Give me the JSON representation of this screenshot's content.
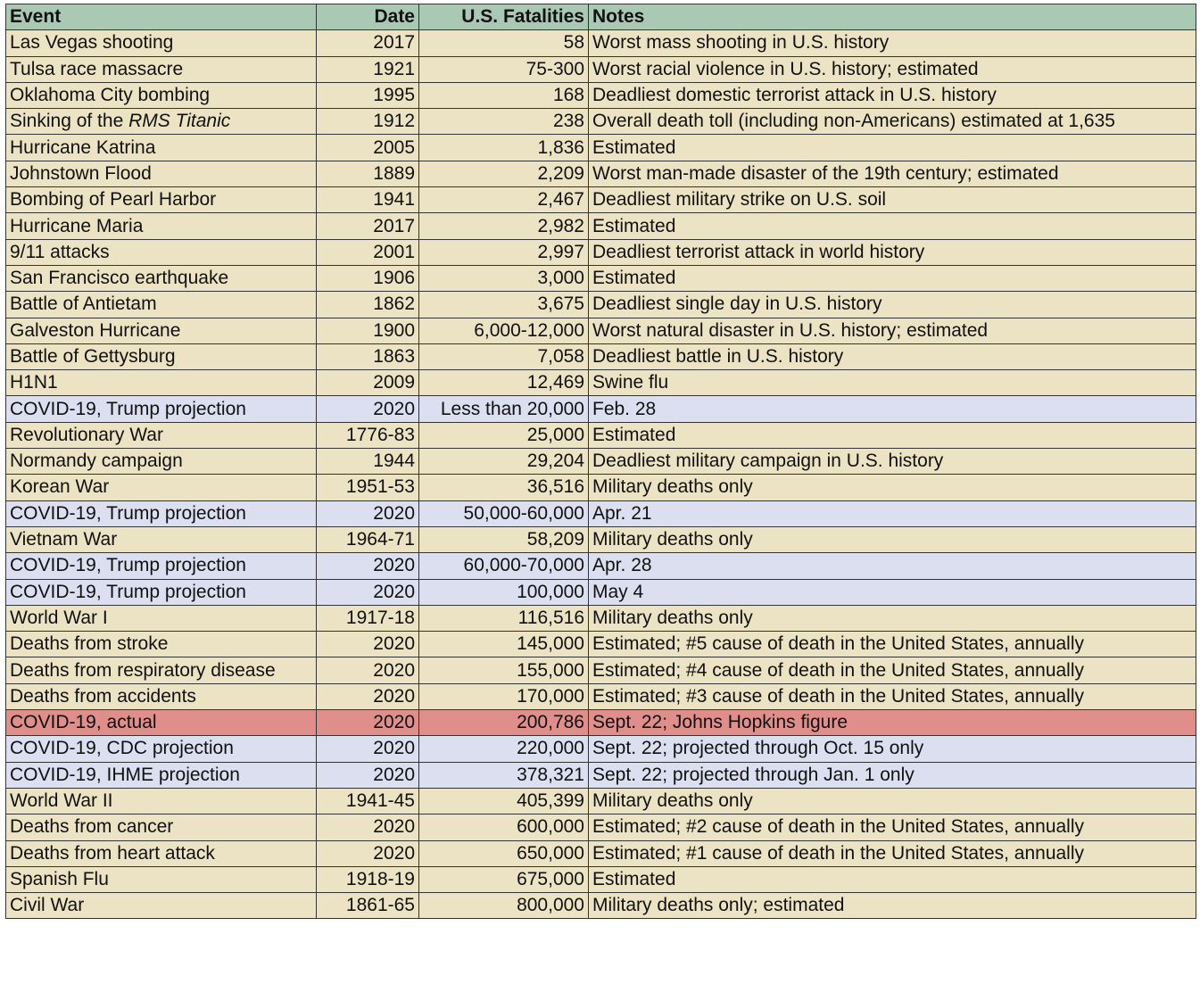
{
  "chart_data": {
    "type": "table",
    "columns": [
      "Event",
      "Date",
      "U.S. Fatalities",
      "Notes"
    ],
    "rows": [
      {
        "event": "Las Vegas shooting",
        "date": "2017",
        "fatalities": "58",
        "notes": "Worst mass shooting in U.S. history",
        "kind": "normal"
      },
      {
        "event": "Tulsa race massacre",
        "date": "1921",
        "fatalities": "75-300",
        "notes": "Worst racial violence in U.S. history; estimated",
        "kind": "normal"
      },
      {
        "event": "Oklahoma City bombing",
        "date": "1995",
        "fatalities": "168",
        "notes": "Deadliest domestic terrorist attack in U.S. history",
        "kind": "normal"
      },
      {
        "event": "Sinking of the ",
        "event_italic": "RMS Titanic",
        "date": "1912",
        "fatalities": "238",
        "notes": "Overall death toll (including non-Americans) estimated at 1,635",
        "kind": "normal"
      },
      {
        "event": "Hurricane Katrina",
        "date": "2005",
        "fatalities": "1,836",
        "notes": "Estimated",
        "kind": "normal"
      },
      {
        "event": "Johnstown Flood",
        "date": "1889",
        "fatalities": "2,209",
        "notes": "Worst man-made disaster of the 19th century; estimated",
        "kind": "normal"
      },
      {
        "event": "Bombing of Pearl Harbor",
        "date": "1941",
        "fatalities": "2,467",
        "notes": "Deadliest military strike on U.S. soil",
        "kind": "normal"
      },
      {
        "event": "Hurricane Maria",
        "date": "2017",
        "fatalities": "2,982",
        "notes": "Estimated",
        "kind": "normal"
      },
      {
        "event": "9/11 attacks",
        "date": "2001",
        "fatalities": "2,997",
        "notes": "Deadliest terrorist attack in world history",
        "kind": "normal"
      },
      {
        "event": "San Francisco earthquake",
        "date": "1906",
        "fatalities": "3,000",
        "notes": "Estimated",
        "kind": "normal"
      },
      {
        "event": "Battle of Antietam",
        "date": "1862",
        "fatalities": "3,675",
        "notes": "Deadliest single day in U.S. history",
        "kind": "normal"
      },
      {
        "event": "Galveston Hurricane",
        "date": "1900",
        "fatalities": "6,000-12,000",
        "notes": "Worst natural disaster in U.S. history; estimated",
        "kind": "normal"
      },
      {
        "event": "Battle of Gettysburg",
        "date": "1863",
        "fatalities": "7,058",
        "notes": "Deadliest battle in U.S. history",
        "kind": "normal"
      },
      {
        "event": "H1N1",
        "date": "2009",
        "fatalities": "12,469",
        "notes": "Swine flu",
        "kind": "normal"
      },
      {
        "event": "COVID-19, Trump projection",
        "date": "2020",
        "fatalities": "Less than 20,000",
        "notes": "Feb. 28",
        "kind": "projection"
      },
      {
        "event": "Revolutionary War",
        "date": "1776-83",
        "fatalities": "25,000",
        "notes": "Estimated",
        "kind": "normal"
      },
      {
        "event": "Normandy campaign",
        "date": "1944",
        "fatalities": "29,204",
        "notes": "Deadliest military campaign in U.S. history",
        "kind": "normal"
      },
      {
        "event": "Korean War",
        "date": "1951-53",
        "fatalities": "36,516",
        "notes": "Military deaths only",
        "kind": "normal"
      },
      {
        "event": "COVID-19, Trump projection",
        "date": "2020",
        "fatalities": "50,000-60,000",
        "notes": "Apr. 21",
        "kind": "projection"
      },
      {
        "event": "Vietnam War",
        "date": "1964-71",
        "fatalities": "58,209",
        "notes": "Military deaths only",
        "kind": "normal"
      },
      {
        "event": "COVID-19, Trump projection",
        "date": "2020",
        "fatalities": "60,000-70,000",
        "notes": "Apr. 28",
        "kind": "projection"
      },
      {
        "event": "COVID-19, Trump projection",
        "date": "2020",
        "fatalities": "100,000",
        "notes": "May 4",
        "kind": "projection"
      },
      {
        "event": "World War I",
        "date": "1917-18",
        "fatalities": "116,516",
        "notes": "Military deaths only",
        "kind": "normal"
      },
      {
        "event": "Deaths from stroke",
        "date": "2020",
        "fatalities": "145,000",
        "notes": "Estimated; #5 cause of death in the United States, annually",
        "kind": "normal"
      },
      {
        "event": "Deaths from respiratory disease",
        "date": "2020",
        "fatalities": "155,000",
        "notes": "Estimated; #4 cause of death in the United States, annually",
        "kind": "normal"
      },
      {
        "event": "Deaths from accidents",
        "date": "2020",
        "fatalities": "170,000",
        "notes": "Estimated; #3 cause of death in the United States, annually",
        "kind": "normal"
      },
      {
        "event": "COVID-19, actual",
        "date": "2020",
        "fatalities": "200,786",
        "notes": "Sept. 22; Johns Hopkins figure",
        "kind": "actual"
      },
      {
        "event": "COVID-19, CDC projection",
        "date": "2020",
        "fatalities": "220,000",
        "notes": "Sept. 22; projected through Oct. 15 only",
        "kind": "projection"
      },
      {
        "event": "COVID-19, IHME projection",
        "date": "2020",
        "fatalities": "378,321",
        "notes": "Sept. 22; projected through Jan. 1 only",
        "kind": "projection"
      },
      {
        "event": "World War II",
        "date": "1941-45",
        "fatalities": "405,399",
        "notes": "Military deaths only",
        "kind": "normal"
      },
      {
        "event": "Deaths from cancer",
        "date": "2020",
        "fatalities": "600,000",
        "notes": "Estimated; #2 cause of death in the United States, annually",
        "kind": "normal"
      },
      {
        "event": "Deaths from heart attack",
        "date": "2020",
        "fatalities": "650,000",
        "notes": "Estimated; #1 cause of death in the United States, annually",
        "kind": "normal"
      },
      {
        "event": "Spanish Flu",
        "date": "1918-19",
        "fatalities": "675,000",
        "notes": "Estimated",
        "kind": "normal"
      },
      {
        "event": "Civil War",
        "date": "1861-65",
        "fatalities": "800,000",
        "notes": "Military deaths only; estimated",
        "kind": "normal"
      }
    ],
    "colors": {
      "header": "#a9c9b5",
      "normal_row": "#ece3c5",
      "projection_row": "#dcdff0",
      "actual_row": "#df8e8c"
    }
  }
}
